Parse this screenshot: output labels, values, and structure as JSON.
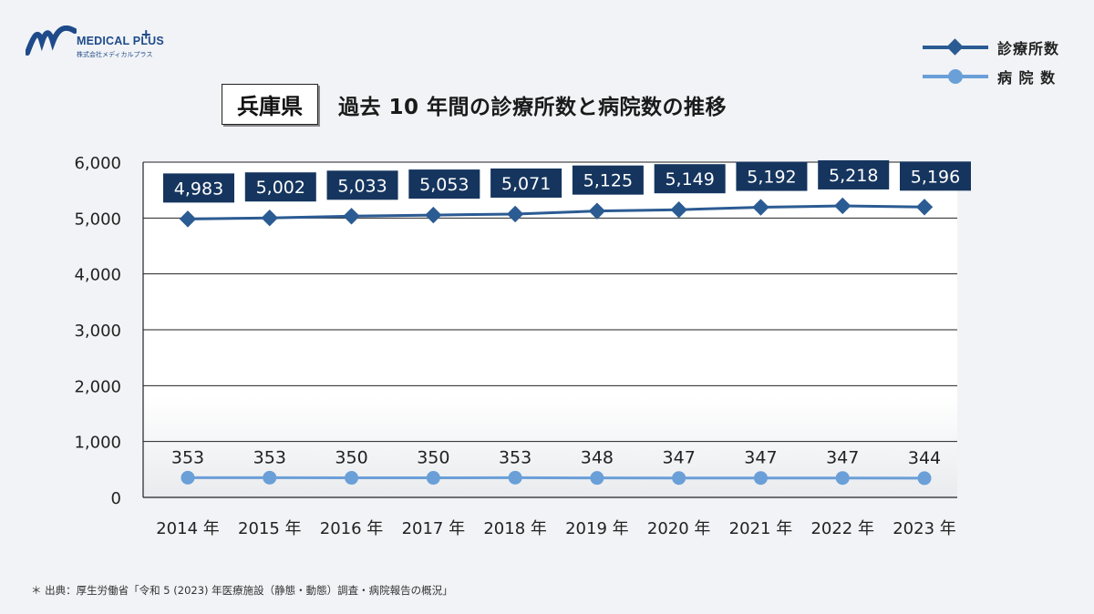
{
  "brand": {
    "name": "MEDICAL PLUS",
    "plus": "+",
    "subtitle": "株式会社メディカルプラス"
  },
  "header": {
    "prefecture": "兵庫県",
    "title": "過去 10 年間の診療所数と病院数の推移"
  },
  "legend": [
    {
      "label": "診療所数",
      "marker": "diamond",
      "color": "#2b5b93"
    },
    {
      "label": "病 院 数",
      "marker": "circle",
      "color": "#6a9fd8"
    }
  ],
  "chart_data": {
    "type": "line",
    "categories": [
      "2014年",
      "2015年",
      "2016年",
      "2017年",
      "2018年",
      "2019年",
      "2020年",
      "2021年",
      "2022年",
      "2023年"
    ],
    "x_tick_labels": [
      "2014 年",
      "2015 年",
      "2016 年",
      "2017 年",
      "2018 年",
      "2019 年",
      "2020 年",
      "2021 年",
      "2022 年",
      "2023 年"
    ],
    "series": [
      {
        "name": "診療所数",
        "values": [
          4983,
          5002,
          5033,
          5053,
          5071,
          5125,
          5149,
          5192,
          5218,
          5196
        ],
        "labels": [
          "4,983",
          "5,002",
          "5,033",
          "5,053",
          "5,071",
          "5,125",
          "5,149",
          "5,192",
          "5,218",
          "5,196"
        ]
      },
      {
        "name": "病 院 数",
        "values": [
          353,
          353,
          350,
          350,
          353,
          348,
          347,
          347,
          347,
          344
        ],
        "labels": [
          "353",
          "353",
          "350",
          "350",
          "353",
          "348",
          "347",
          "347",
          "347",
          "344"
        ]
      }
    ],
    "ylim": [
      0,
      6000
    ],
    "y_ticks": [
      0,
      1000,
      2000,
      3000,
      4000,
      5000,
      6000
    ],
    "y_tick_labels": [
      "0",
      "1,000",
      "2,000",
      "3,000",
      "4,000",
      "5,000",
      "6,000"
    ],
    "grid": true,
    "legend_position": "top-right",
    "colors": {
      "clinic": "#2b5b93",
      "hospital": "#6a9fd8",
      "label_bg": "#15355e"
    }
  },
  "source_note": "＊ 出典：厚生労働省「令和 5 (2023) 年医療施設（静態・動態）調査・病院報告の概況」"
}
